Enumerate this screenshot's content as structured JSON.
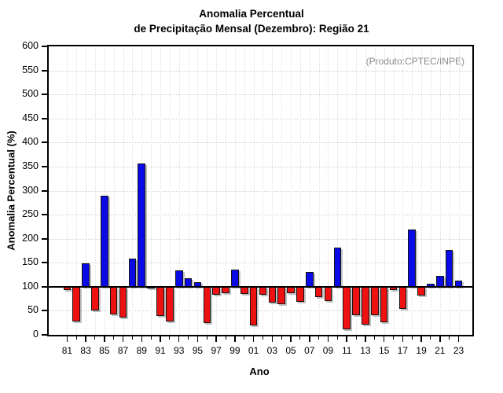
{
  "title": {
    "line1": "Anomalia Percentual",
    "line2": "de Precipitação Mensal (Dezembro): Região 21"
  },
  "annotation": "(Produto:CPTEC/INPE)",
  "colors": {
    "bar_above_baseline": "#0a0ae6",
    "bar_below_baseline": "#ee1111",
    "annotation_text": "#8c8c8c",
    "baseline": "#000000"
  },
  "chart_data": {
    "type": "bar",
    "title": "Anomalia Percentual de Precipitação Mensal (Dezembro): Região 21",
    "xlabel": "Ano",
    "ylabel": "Anomalia Percentual (%)",
    "ylim": [
      0,
      600
    ],
    "yticks": [
      0,
      50,
      100,
      150,
      200,
      250,
      300,
      350,
      400,
      450,
      500,
      550,
      600
    ],
    "baseline": 100,
    "grid": true,
    "legend": "none",
    "categories": [
      "81",
      "82",
      "83",
      "84",
      "85",
      "86",
      "87",
      "88",
      "89",
      "90",
      "91",
      "92",
      "93",
      "94",
      "95",
      "96",
      "97",
      "98",
      "99",
      "00",
      "01",
      "02",
      "03",
      "04",
      "05",
      "06",
      "07",
      "08",
      "09",
      "10",
      "11",
      "12",
      "13",
      "14",
      "15",
      "16",
      "17",
      "18",
      "19",
      "20",
      "21",
      "22",
      "23"
    ],
    "labeled_categories": [
      "81",
      "83",
      "85",
      "87",
      "89",
      "91",
      "93",
      "95",
      "97",
      "99",
      "01",
      "03",
      "05",
      "07",
      "09",
      "11",
      "13",
      "15",
      "17",
      "19",
      "21",
      "23"
    ],
    "values": [
      93,
      27,
      148,
      50,
      290,
      43,
      36,
      159,
      357,
      96,
      40,
      27,
      134,
      117,
      109,
      24,
      84,
      87,
      136,
      85,
      19,
      84,
      67,
      64,
      87,
      69,
      131,
      78,
      70,
      181,
      11,
      41,
      22,
      41,
      26,
      93,
      54,
      219,
      82,
      106,
      122,
      176,
      113
    ],
    "color_rule": "blue above 100, red below 100"
  }
}
